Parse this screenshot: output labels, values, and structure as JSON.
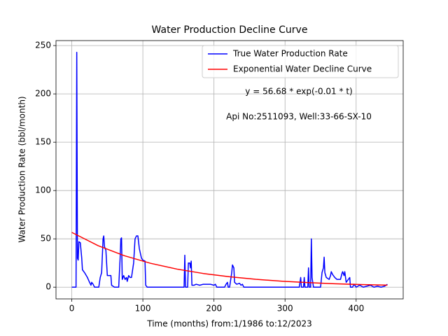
{
  "chart_data": {
    "type": "line",
    "title": "Water Production Decline Curve",
    "xlabel": "Time (months) from:1/1986 to:12/2023",
    "ylabel": "Water Production Rate (bbl/month)",
    "annotations": [
      "y = 56.68 * exp(-0.01 * t)",
      "Api No:2511093, Well:33-66-SX-10"
    ],
    "xlim": [
      -22.2,
      466.2
    ],
    "ylim": [
      -12.15,
      255.15
    ],
    "xticks": [
      0,
      100,
      200,
      300,
      400
    ],
    "yticks": [
      0,
      50,
      100,
      150,
      200,
      250
    ],
    "grid": true,
    "legend": "upper right",
    "series": [
      {
        "name": "True Water Production Rate",
        "color": "#0000ff",
        "x": [
          0,
          5,
          6,
          7,
          8,
          9,
          10,
          12,
          14,
          15,
          18,
          22,
          25,
          27,
          28,
          30,
          32,
          38,
          40,
          42,
          44,
          45,
          46,
          48,
          50,
          55,
          56,
          60,
          66,
          68,
          69,
          70,
          71,
          73,
          75,
          77,
          78,
          80,
          82,
          84,
          87,
          89,
          91,
          93,
          95,
          98,
          100,
          103,
          104,
          106,
          158,
          159,
          160,
          163,
          164,
          166,
          167,
          168,
          169,
          172,
          175,
          180,
          185,
          190,
          195,
          200,
          202,
          204,
          215,
          217,
          219,
          220,
          222,
          225,
          226,
          228,
          229,
          232,
          236,
          238,
          240,
          242,
          320,
          322,
          323,
          326,
          327,
          328,
          332,
          333,
          334,
          336,
          337,
          338,
          340,
          350,
          352,
          354,
          355,
          356,
          358,
          362,
          364,
          365,
          367,
          370,
          373,
          376,
          378,
          380,
          381,
          383,
          384,
          386,
          389,
          391,
          392,
          395,
          397,
          400,
          405,
          410,
          420,
          425,
          430,
          435,
          440,
          444
        ],
        "values": [
          0,
          0,
          0,
          243,
          30,
          28,
          47,
          46,
          30,
          18,
          15,
          10,
          5,
          2,
          5,
          3,
          0,
          0,
          10,
          15,
          50,
          53,
          42,
          38,
          12,
          12,
          2,
          0,
          0,
          30,
          50,
          51,
          8,
          12,
          8,
          10,
          6,
          12,
          10,
          10,
          25,
          50,
          53,
          53,
          40,
          30,
          28,
          27,
          2,
          0,
          0,
          33,
          0,
          0,
          25,
          25,
          20,
          27,
          2,
          2,
          3,
          2,
          3,
          3,
          3,
          2,
          3,
          0,
          0,
          3,
          5,
          0,
          0,
          15,
          23,
          20,
          5,
          3,
          4,
          2,
          3,
          0,
          0,
          10,
          0,
          0,
          10,
          0,
          0,
          20,
          0,
          0,
          50,
          10,
          0,
          0,
          15,
          20,
          31,
          15,
          10,
          8,
          12,
          16,
          13,
          10,
          8,
          8,
          8,
          14,
          16,
          12,
          16,
          5,
          8,
          10,
          0,
          0,
          3,
          0,
          2,
          0,
          2,
          0,
          1,
          0,
          1,
          3
        ]
      },
      {
        "name": "Exponential Water Decline Curve",
        "color": "#ff0000",
        "x": [
          0,
          37,
          74,
          111,
          148,
          185,
          222,
          259,
          296,
          333,
          370,
          407,
          444
        ],
        "values": [
          56.68,
          42.95,
          32.54,
          24.66,
          18.68,
          14.15,
          10.72,
          8.13,
          6.16,
          4.67,
          3.53,
          2.68,
          2.03
        ]
      }
    ]
  }
}
